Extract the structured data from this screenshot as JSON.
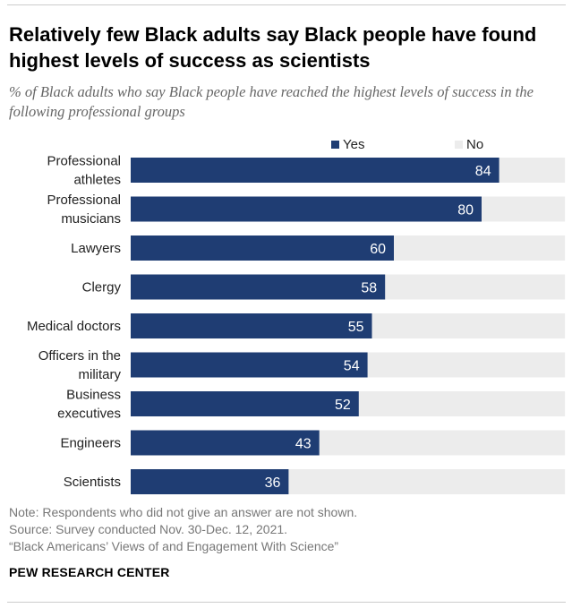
{
  "title": "Relatively few Black adults say Black people have found highest levels of success as scientists",
  "subtitle": "% of Black adults who say Black people have reached the highest levels of success in the following professional groups",
  "legend": {
    "yes": "Yes",
    "no": "No"
  },
  "colors": {
    "yes": "#1f3d73",
    "no": "#ececec",
    "yes_text": "#ffffff",
    "category_text": "#222222"
  },
  "chart_data": {
    "type": "bar",
    "orientation": "horizontal",
    "stacked": true,
    "categories": [
      [
        "Professional",
        "athletes"
      ],
      [
        "Professional",
        "musicians"
      ],
      [
        "Lawyers"
      ],
      [
        "Clergy"
      ],
      [
        "Medical doctors"
      ],
      [
        "Officers in the",
        "military"
      ],
      [
        "Business",
        "executives"
      ],
      [
        "Engineers"
      ],
      [
        "Scientists"
      ]
    ],
    "series": [
      {
        "name": "Yes",
        "values": [
          84,
          80,
          60,
          58,
          55,
          54,
          52,
          43,
          36
        ],
        "labels_shown": true
      },
      {
        "name": "No",
        "values": [
          15,
          19,
          39,
          41,
          44,
          45,
          47,
          56,
          63
        ],
        "labels_shown": false
      }
    ],
    "xlim": [
      0,
      100
    ],
    "grid": false,
    "legend_position": "top"
  },
  "notes": {
    "note": "Note: Respondents who did not give an answer are not shown.",
    "source": "Source: Survey conducted Nov. 30-Dec. 12, 2021.",
    "report": "“Black Americans’ Views of and Engagement With Science”"
  },
  "brand": "PEW RESEARCH CENTER"
}
